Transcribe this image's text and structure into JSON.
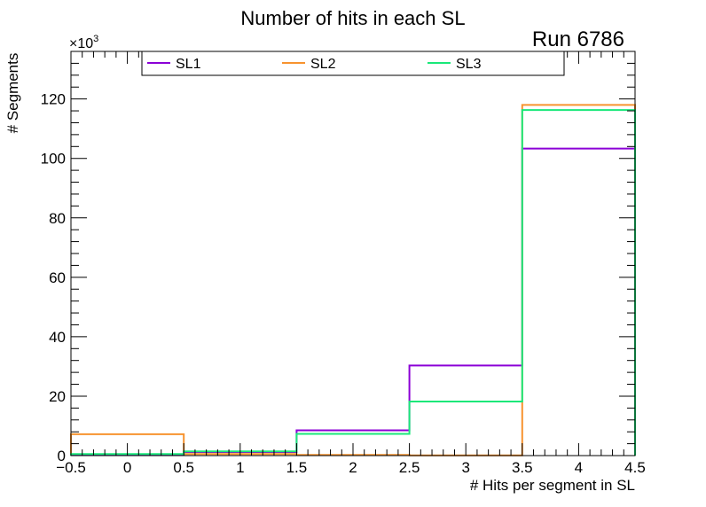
{
  "chart_data": {
    "type": "step-histogram",
    "title": "Number of hits in each SL",
    "annotation": "Run 6786",
    "xlabel": "# Hits per segment in SL",
    "ylabel": "# Segments",
    "y_multiplier_base": "×10",
    "y_multiplier_exp": "3",
    "xlim": [
      -0.5,
      4.5
    ],
    "ylim": [
      0,
      136
    ],
    "x_ticks": [
      -0.5,
      0,
      0.5,
      1,
      1.5,
      2,
      2.5,
      3,
      3.5,
      4,
      4.5
    ],
    "x_tick_labels": [
      "−0.5",
      "0",
      "0.5",
      "1",
      "1.5",
      "2",
      "2.5",
      "3",
      "3.5",
      "4",
      "4.5"
    ],
    "y_ticks": [
      0,
      20,
      40,
      60,
      80,
      100,
      120
    ],
    "y_tick_labels": [
      "0",
      "20",
      "40",
      "60",
      "80",
      "100",
      "120"
    ],
    "bin_edges": [
      -0.5,
      0.5,
      1.5,
      2.5,
      3.5,
      4.5
    ],
    "legend_position": "top",
    "series": [
      {
        "name": "SL1",
        "color": "#8B00D6",
        "values": [
          0.4,
          1.2,
          8.5,
          30.3,
          103.3
        ]
      },
      {
        "name": "SL2",
        "color": "#F7932F",
        "values": [
          7.2,
          0.5,
          0.2,
          0.1,
          118.0
        ]
      },
      {
        "name": "SL3",
        "color": "#19E879",
        "values": [
          0.5,
          1.4,
          7.3,
          18.2,
          116.3
        ]
      }
    ]
  }
}
